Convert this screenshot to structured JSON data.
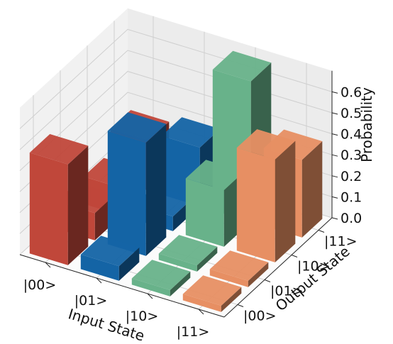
{
  "chart_data": {
    "type": "bar3d",
    "title": "",
    "xlabel": "Input State",
    "ylabel": "Output State",
    "zlabel": "Probability",
    "x_categories": [
      "|00>",
      "|01>",
      "|10>",
      "|11>"
    ],
    "y_categories": [
      "|00>",
      "|01>",
      "|10>",
      "|11>"
    ],
    "zlim": [
      0,
      0.7
    ],
    "z_ticks": [
      "0.0",
      "0.1",
      "0.2",
      "0.3",
      "0.4",
      "0.5",
      "0.6"
    ],
    "grid": true,
    "series": [
      {
        "input": "|00>",
        "color": "#c0473a",
        "values": [
          {
            "output": "|00>",
            "value": 0.48
          },
          {
            "output": "|01>",
            "value": 0.13
          },
          {
            "output": "|10>",
            "value": 0.13
          },
          {
            "output": "|11>",
            "value": 0.24
          }
        ]
      },
      {
        "input": "|01>",
        "color": "#1464a5",
        "values": [
          {
            "output": "|00>",
            "value": 0.07
          },
          {
            "output": "|01>",
            "value": 0.54
          },
          {
            "output": "|10>",
            "value": 0.07
          },
          {
            "output": "|11>",
            "value": 0.28
          }
        ]
      },
      {
        "input": "|10>",
        "color": "#68b28a",
        "values": [
          {
            "output": "|00>",
            "value": 0.03
          },
          {
            "output": "|01>",
            "value": 0.03
          },
          {
            "output": "|10>",
            "value": 0.27
          },
          {
            "output": "|11>",
            "value": 0.67
          }
        ]
      },
      {
        "input": "|11>",
        "color": "#e78f63",
        "values": [
          {
            "output": "|00>",
            "value": 0.03
          },
          {
            "output": "|01>",
            "value": 0.03
          },
          {
            "output": "|10>",
            "value": 0.49
          },
          {
            "output": "|11>",
            "value": 0.37
          }
        ]
      }
    ]
  }
}
